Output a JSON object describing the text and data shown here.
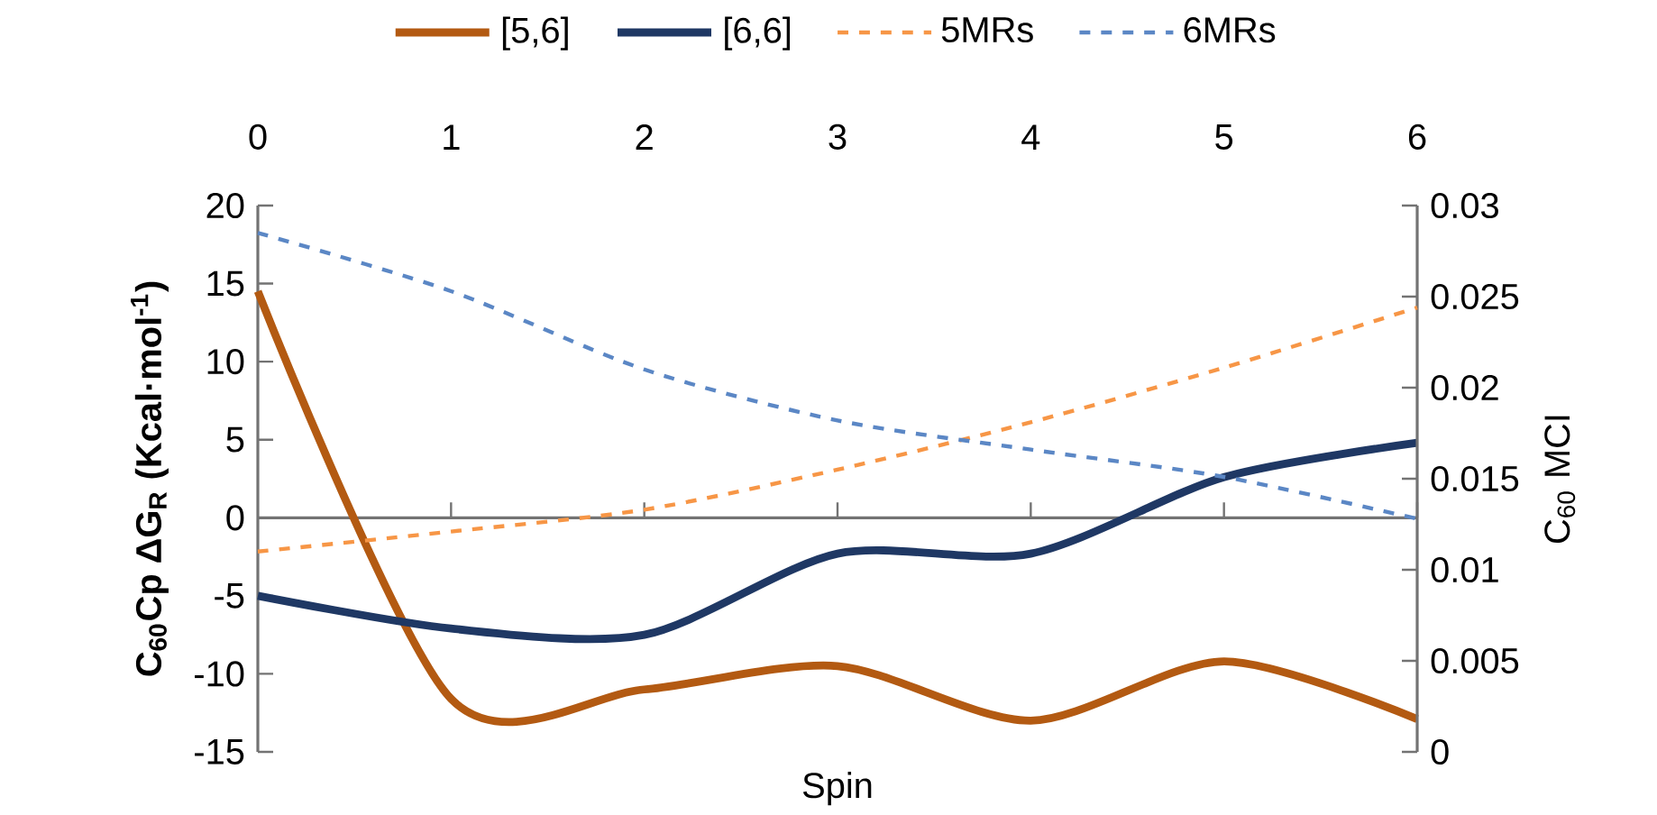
{
  "chart_data": {
    "type": "line",
    "xlabel": "Spin",
    "ylabel": "C$_{60}$Cp ΔG$_{R}$ (Kcal·mol$^{-1}$)",
    "y2label": "C$_{60}$ MCI",
    "x": [
      0,
      1,
      2,
      3,
      4,
      5,
      6
    ],
    "series": [
      {
        "name": "[5,6]",
        "color": "#b35a12",
        "values": [
          14.5,
          -11.6,
          -11.0,
          -9.5,
          -13.0,
          -9.2,
          -12.9
        ]
      },
      {
        "name": "[6,6]",
        "color": "#1f3864",
        "values": [
          -5.0,
          -7.1,
          -7.5,
          -2.3,
          -2.3,
          2.6,
          4.8
        ]
      },
      {
        "name": "5MRs",
        "color": "#f79646",
        "axis": "y2",
        "line_style": "dashed",
        "values": [
          0.011,
          0.0121,
          0.0133,
          0.0155,
          0.0181,
          0.0211,
          0.0244
        ]
      },
      {
        "name": "6MRs",
        "color": "#5b87c5",
        "axis": "y2",
        "line_style": "dashed",
        "values": [
          0.0285,
          0.0253,
          0.021,
          0.0182,
          0.0166,
          0.0151,
          0.0128
        ]
      }
    ],
    "xlim": [
      0,
      6
    ],
    "xticks": [
      0,
      1,
      2,
      3,
      4,
      5,
      6
    ],
    "ylim": [
      -15,
      20
    ],
    "yticks": [
      -15,
      -10,
      -5,
      0,
      5,
      10,
      15,
      20
    ],
    "y2lim": [
      0,
      0.03
    ],
    "y2ticks": [
      0,
      0.005,
      0.01,
      0.015,
      0.02,
      0.025,
      0.03
    ],
    "legend": "top",
    "marker": "none"
  }
}
